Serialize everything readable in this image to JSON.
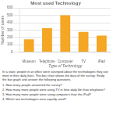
{
  "chart_data": {
    "type": "bar",
    "title": "Most used Technology",
    "xlabel": "Type of Technology",
    "ylabel": "Number of users",
    "categories": [
      "Museum",
      "Telephone",
      "Computer",
      "TV",
      "iPad"
    ],
    "values": [
      175,
      325,
      500,
      275,
      225
    ],
    "color": "#F5A623",
    "ylim": [
      0,
      600
    ],
    "yticks": [
      0,
      100,
      200,
      300,
      400,
      500,
      600
    ],
    "grid": true,
    "annotations": [
      "In a state, people in an office were surveyed about the technologies they use\nmost in their daily lives. This bar chart shows the data of the survey. Study\nthe bar graph and answer the following questions.",
      "1.  How many people answered the survey?",
      "2.  How many more people were using TV in their daily life than telephone?",
      "3.  How many more people were using computers than the iPad?",
      "4.  Which two technologies were equally used?"
    ]
  }
}
